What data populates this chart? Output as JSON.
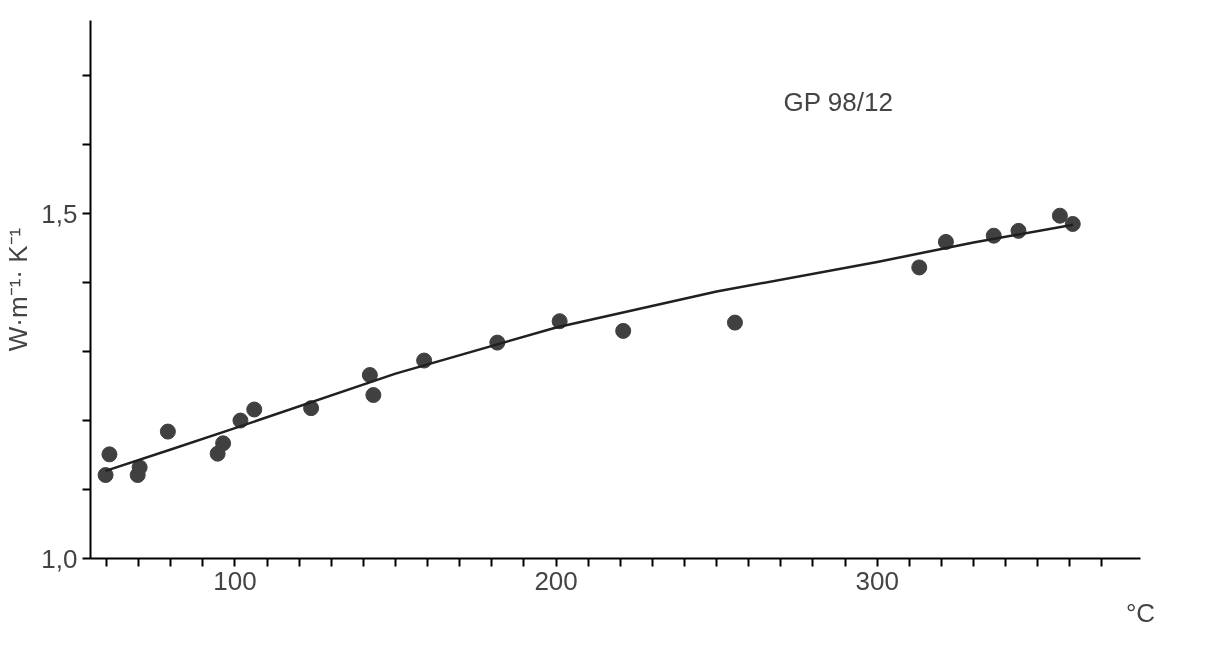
{
  "chart_data": {
    "type": "scatter",
    "xlabel": "°C",
    "ylabel": "W·m⁻¹· K⁻¹",
    "annotations": [
      "GP 98/12"
    ],
    "xlim": [
      55,
      382
    ],
    "ylim": [
      1.0,
      1.78
    ],
    "xticks": [
      {
        "value": 60,
        "label": null
      },
      {
        "value": 70,
        "label": null
      },
      {
        "value": 80,
        "label": null
      },
      {
        "value": 90,
        "label": null
      },
      100,
      {
        "value": 110,
        "label": null
      },
      {
        "value": 120,
        "label": null
      },
      {
        "value": 130,
        "label": null
      },
      {
        "value": 140,
        "label": null
      },
      {
        "value": 150,
        "label": null
      },
      {
        "value": 160,
        "label": null
      },
      {
        "value": 170,
        "label": null
      },
      {
        "value": 180,
        "label": null
      },
      {
        "value": 190,
        "label": null
      },
      200,
      {
        "value": 210,
        "label": null
      },
      {
        "value": 220,
        "label": null
      },
      {
        "value": 230,
        "label": null
      },
      {
        "value": 240,
        "label": null
      },
      {
        "value": 250,
        "label": null
      },
      {
        "value": 260,
        "label": null
      },
      {
        "value": 270,
        "label": null
      },
      {
        "value": 280,
        "label": null
      },
      {
        "value": 290,
        "label": null
      },
      300,
      {
        "value": 310,
        "label": null
      },
      {
        "value": 320,
        "label": null
      },
      {
        "value": 330,
        "label": null
      },
      {
        "value": 340,
        "label": null
      },
      {
        "value": 350,
        "label": null
      },
      {
        "value": 360,
        "label": null
      },
      {
        "value": 370,
        "label": null
      }
    ],
    "yticks": [
      {
        "value": 1.0,
        "label": "1,0"
      },
      {
        "value": 1.1,
        "label": null
      },
      {
        "value": 1.2,
        "label": null
      },
      {
        "value": 1.3,
        "label": null
      },
      {
        "value": 1.4,
        "label": null
      },
      {
        "value": 1.5,
        "label": "1,5"
      },
      {
        "value": 1.6,
        "label": null
      },
      {
        "value": 1.7,
        "label": null
      }
    ],
    "grid": false,
    "marker": "circle",
    "series": [
      {
        "color": "#404040",
        "x": [
          59.7,
          60.9,
          69.7,
          70.3,
          79.1,
          94.6,
          96.3,
          101.7,
          106,
          123.7,
          142,
          143.1,
          158.9,
          181.7,
          201.1,
          220.9,
          255.7,
          313.1,
          321.4,
          336.3,
          344,
          356.9,
          360.9
        ],
        "values": [
          1.121,
          1.151,
          1.121,
          1.132,
          1.184,
          1.152,
          1.167,
          1.2,
          1.216,
          1.218,
          1.266,
          1.237,
          1.287,
          1.313,
          1.344,
          1.33,
          1.342,
          1.422,
          1.459,
          1.468,
          1.475,
          1.497,
          1.485
        ]
      },
      {
        "type": "line",
        "marker": "none",
        "color": "#202020",
        "x": [
          59.7,
          80,
          100,
          150,
          200,
          250,
          300,
          330,
          361
        ],
        "values": [
          1.127,
          1.158,
          1.189,
          1.268,
          1.335,
          1.387,
          1.43,
          1.458,
          1.484
        ]
      }
    ]
  }
}
